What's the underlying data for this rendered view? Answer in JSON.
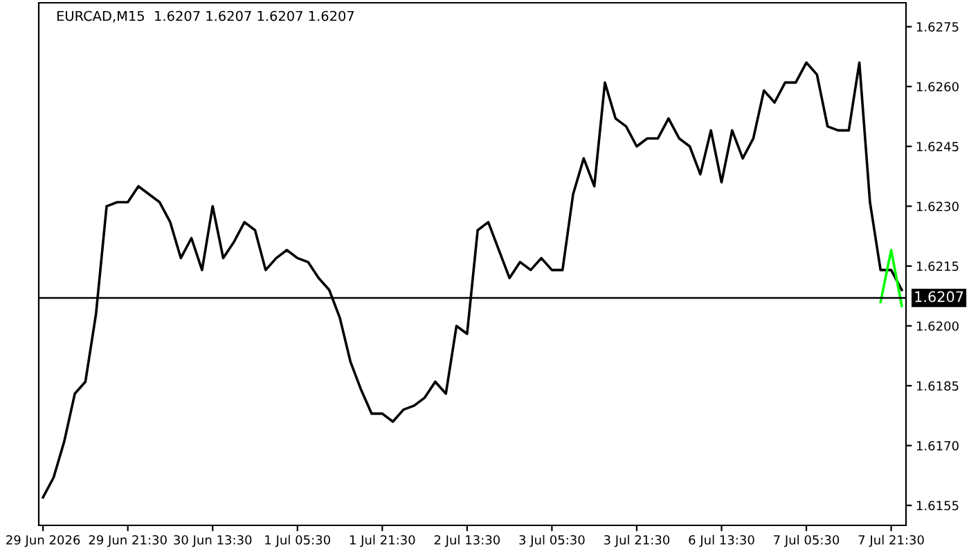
{
  "chart_data": {
    "type": "line",
    "title": "EURCAD,M15  1.6207 1.6207 1.6207 1.6207",
    "series": [
      {
        "color": "#000000",
        "values": [
          1.6157,
          1.6162,
          1.6171,
          1.6183,
          1.6186,
          1.6203,
          1.623,
          1.6231,
          1.6231,
          1.6235,
          1.6233,
          1.6231,
          1.6226,
          1.6217,
          1.6222,
          1.6214,
          1.623,
          1.6217,
          1.6221,
          1.6226,
          1.6224,
          1.6214,
          1.6217,
          1.6219,
          1.6217,
          1.6216,
          1.6212,
          1.6209,
          1.6202,
          1.6191,
          1.6184,
          1.6178,
          1.6178,
          1.6176,
          1.6179,
          1.618,
          1.6182,
          1.6186,
          1.6183,
          1.62,
          1.6198,
          1.6224,
          1.6226,
          1.6219,
          1.6212,
          1.6216,
          1.6214,
          1.6217,
          1.6214,
          1.6214,
          1.6233,
          1.6242,
          1.6235,
          1.6261,
          1.6252,
          1.625,
          1.6245,
          1.6247,
          1.6247,
          1.6252,
          1.6247,
          1.6245,
          1.6238,
          1.6249,
          1.6236,
          1.6249,
          1.6242,
          1.6247,
          1.6259,
          1.6256,
          1.6261,
          1.6261,
          1.6266,
          1.6263,
          1.625,
          1.6249,
          1.6249,
          1.6266,
          1.6231,
          1.6214,
          1.6214,
          1.6209
        ]
      },
      {
        "color": "#00ff00",
        "values": [
          null,
          null,
          null,
          null,
          null,
          null,
          null,
          null,
          null,
          null,
          null,
          null,
          null,
          null,
          null,
          null,
          null,
          null,
          null,
          null,
          null,
          null,
          null,
          null,
          null,
          null,
          null,
          null,
          null,
          null,
          null,
          null,
          null,
          null,
          null,
          null,
          null,
          null,
          null,
          null,
          null,
          null,
          null,
          null,
          null,
          null,
          null,
          null,
          null,
          null,
          null,
          null,
          null,
          null,
          null,
          null,
          null,
          null,
          null,
          null,
          null,
          null,
          null,
          null,
          null,
          null,
          null,
          null,
          null,
          null,
          null,
          null,
          null,
          null,
          null,
          null,
          null,
          null,
          null,
          1.6206,
          1.6219,
          1.6205
        ]
      }
    ],
    "categories": [
      "29 Jun 2026",
      null,
      null,
      null,
      null,
      null,
      null,
      null,
      "29 Jun 21:30",
      null,
      null,
      null,
      null,
      null,
      null,
      null,
      "30 Jun 13:30",
      null,
      null,
      null,
      null,
      null,
      null,
      null,
      "1 Jul 05:30",
      null,
      null,
      null,
      null,
      null,
      null,
      null,
      "1 Jul 21:30",
      null,
      null,
      null,
      null,
      null,
      null,
      null,
      "2 Jul 13:30",
      null,
      null,
      null,
      null,
      null,
      null,
      null,
      "3 Jul 05:30",
      null,
      null,
      null,
      null,
      null,
      null,
      null,
      "3 Jul 21:30",
      null,
      null,
      null,
      null,
      null,
      null,
      null,
      "6 Jul 13:30",
      null,
      null,
      null,
      null,
      null,
      null,
      null,
      "7 Jul 05:30",
      null,
      null,
      null,
      null,
      null,
      null,
      null,
      "7 Jul 21:30",
      null
    ],
    "ylim": [
      1.615,
      1.6281
    ],
    "yticks": [
      {
        "value": 1.6155,
        "label": "1.6155"
      },
      {
        "value": 1.617,
        "label": "1.6170"
      },
      {
        "value": 1.6185,
        "label": "1.6185"
      },
      {
        "value": 1.62,
        "label": "1.6200"
      },
      {
        "value": 1.6215,
        "label": "1.6215"
      },
      {
        "value": 1.623,
        "label": "1.6230"
      },
      {
        "value": 1.6245,
        "label": "1.6245"
      },
      {
        "value": 1.626,
        "label": "1.6260"
      },
      {
        "value": 1.6275,
        "label": "1.6275"
      }
    ],
    "ref_lines": [
      {
        "axis": "y",
        "value": 1.6207,
        "label": "1.6207",
        "color": "#000000"
      }
    ],
    "grid": false,
    "legend": false
  }
}
